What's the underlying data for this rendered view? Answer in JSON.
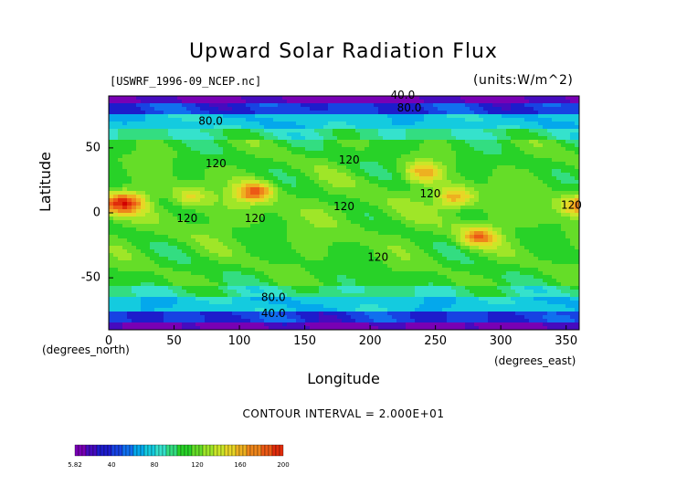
{
  "chart_data": {
    "type": "heatmap",
    "title": "Upward Solar Radiation Flux",
    "subtitle_left": "[USWRF_1996-09_NCEP.nc]",
    "subtitle_right": "(units:W/m^2)",
    "xlabel": "Longitude",
    "ylabel": "Latitude",
    "x_unit_left": "(degrees_north)",
    "x_unit_right": "(degrees_east)",
    "xlim": [
      0,
      360
    ],
    "ylim": [
      -90,
      90
    ],
    "x_ticks": [
      "0",
      "50",
      "100",
      "150",
      "200",
      "250",
      "300",
      "350"
    ],
    "x_tick_values": [
      0,
      50,
      100,
      150,
      200,
      250,
      300,
      350
    ],
    "y_ticks": [
      "50",
      "0",
      "-50"
    ],
    "y_tick_values": [
      50,
      0,
      -50
    ],
    "contour_interval_text": "CONTOUR INTERVAL = 2.000E+01",
    "contour_labels": [
      {
        "text": "40.0",
        "lon": 225,
        "lat": 88
      },
      {
        "text": "80.0",
        "lon": 230,
        "lat": 78
      },
      {
        "text": "80.0",
        "lon": 78,
        "lat": 68
      },
      {
        "text": "120",
        "lon": 82,
        "lat": 35
      },
      {
        "text": "120",
        "lon": 184,
        "lat": 38
      },
      {
        "text": "120",
        "lon": 180,
        "lat": 2
      },
      {
        "text": "120",
        "lon": 246,
        "lat": 12
      },
      {
        "text": "120",
        "lon": 60,
        "lat": -7
      },
      {
        "text": "120",
        "lon": 112,
        "lat": -7
      },
      {
        "text": "120",
        "lon": 206,
        "lat": -37
      },
      {
        "text": "120",
        "lon": 354,
        "lat": 3
      },
      {
        "text": "80.0",
        "lon": 126,
        "lat": -68
      },
      {
        "text": "40.0",
        "lon": 126,
        "lat": -80
      }
    ],
    "hotspots": [
      {
        "lon": 14,
        "lat": 8,
        "value": 180
      },
      {
        "lon": 112,
        "lat": 16,
        "value": 180
      },
      {
        "lon": 265,
        "lat": 12,
        "value": 170
      },
      {
        "lon": 283,
        "lat": -18,
        "value": 170
      },
      {
        "lon": 241,
        "lat": 31,
        "value": 160
      },
      {
        "lon": 355,
        "lat": 5,
        "value": 150
      },
      {
        "lon": 62,
        "lat": 13,
        "value": 150
      }
    ],
    "colorbar": {
      "min_label": "5.82",
      "max_label": "200",
      "tick_labels": [
        "40",
        "80",
        "120",
        "160"
      ],
      "tick_values": [
        40,
        80,
        120,
        160
      ],
      "min": 5.82,
      "max": 200
    }
  }
}
